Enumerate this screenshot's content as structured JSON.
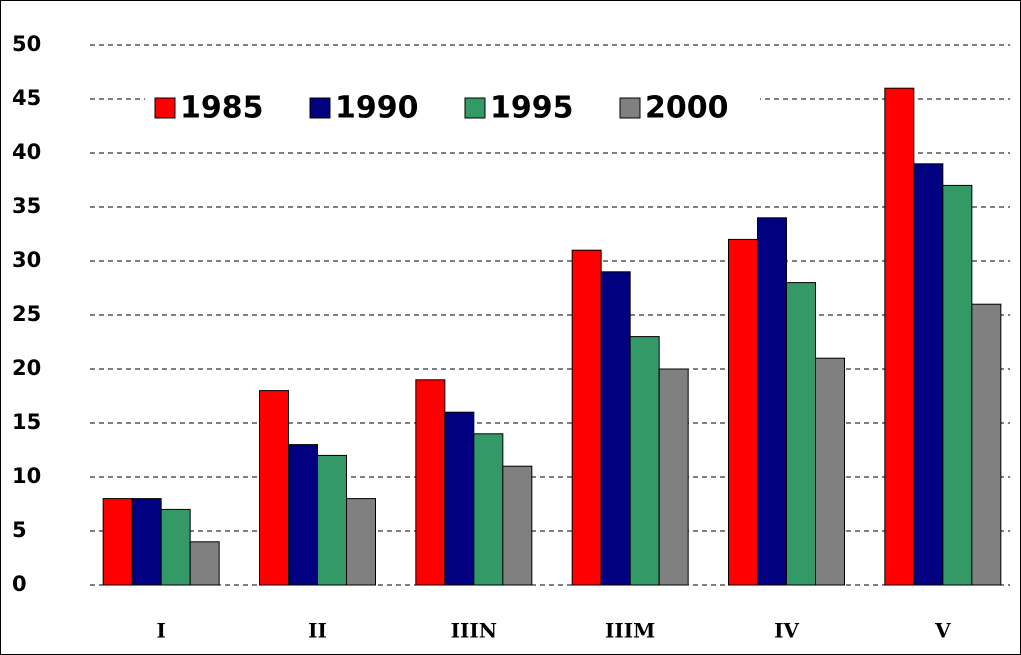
{
  "chart_data": {
    "type": "bar",
    "categories": [
      "I",
      "II",
      "IIIN",
      "IIIM",
      "IV",
      "V"
    ],
    "series": [
      {
        "name": "1985",
        "color": "#ff0000",
        "values": [
          8,
          18,
          19,
          31,
          32,
          46
        ]
      },
      {
        "name": "1990",
        "color": "#000080",
        "values": [
          8,
          13,
          16,
          29,
          34,
          39
        ]
      },
      {
        "name": "1995",
        "color": "#339966",
        "values": [
          7,
          12,
          14,
          23,
          28,
          37
        ]
      },
      {
        "name": "2000",
        "color": "#808080",
        "values": [
          4,
          8,
          11,
          20,
          21,
          26
        ]
      }
    ],
    "ylim": [
      0,
      50
    ],
    "yticks": [
      0,
      5,
      10,
      15,
      20,
      25,
      30,
      35,
      40,
      45,
      50
    ],
    "grid": true,
    "legend": "top-left"
  }
}
